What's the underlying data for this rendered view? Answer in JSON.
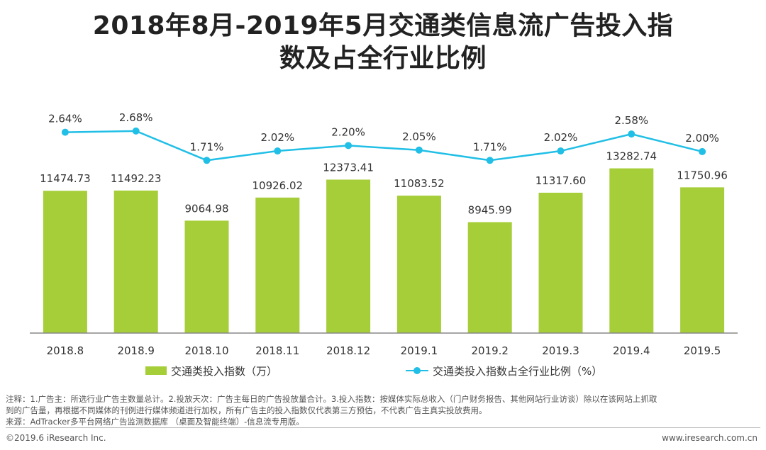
{
  "title": {
    "line1": "2018年8月-2019年5月交通类信息流广告投入指",
    "line2": "数及占全行业比例"
  },
  "colors": {
    "bar": "#a6ce39",
    "line": "#21bfe6",
    "axis": "#888888"
  },
  "chart_data": {
    "type": "bar+line",
    "categories": [
      "2018.8",
      "2018.9",
      "2018.10",
      "2018.11",
      "2018.12",
      "2019.1",
      "2019.2",
      "2019.3",
      "2019.4",
      "2019.5"
    ],
    "series": [
      {
        "name": "交通类投入指数（万）",
        "type": "bar",
        "values": [
          11474.73,
          11492.23,
          9064.98,
          10926.02,
          12373.41,
          11083.52,
          8945.99,
          11317.6,
          13282.74,
          11750.96
        ],
        "labels": [
          "11474.73",
          "11492.23",
          "9064.98",
          "10926.02",
          "12373.41",
          "11083.52",
          "8945.99",
          "11317.60",
          "13282.74",
          "11750.96"
        ]
      },
      {
        "name": "交通类投入指数占全行业比例（%）",
        "type": "line",
        "values": [
          2.64,
          2.68,
          1.71,
          2.02,
          2.2,
          2.05,
          1.71,
          2.02,
          2.58,
          2.0
        ],
        "labels": [
          "2.64%",
          "2.68%",
          "1.71%",
          "2.02%",
          "2.20%",
          "2.05%",
          "1.71%",
          "2.02%",
          "2.58%",
          "2.00%"
        ]
      }
    ],
    "bar_ylim": [
      0,
      20000
    ],
    "line_ylim": [
      -4.0,
      4.2
    ],
    "legend": "bottom"
  },
  "legend": {
    "bar_label": "交通类投入指数（万）",
    "line_label": "交通类投入指数占全行业比例（%）"
  },
  "notes": {
    "line1": "注释：1.广告主：所选行业广告主数量总计。2.投放天次：广告主每日的广告投放量合计。3.投入指数：按媒体实际总收入（门户财务报告、其他网站行业访谈）除以在该网站上抓取",
    "line2": "到的广告量，再根据不同媒体的刊例进行媒体频道进行加权，所有广告主的投入指数仅代表第三方预估，不代表广告主真实投放费用。",
    "line3": "来源：AdTracker多平台网络广告监测数据库 （桌面及智能终端）-信息流专用版。"
  },
  "footer": {
    "copyright": "©2019.6 iResearch Inc.",
    "site": "www.iresearch.com.cn"
  }
}
